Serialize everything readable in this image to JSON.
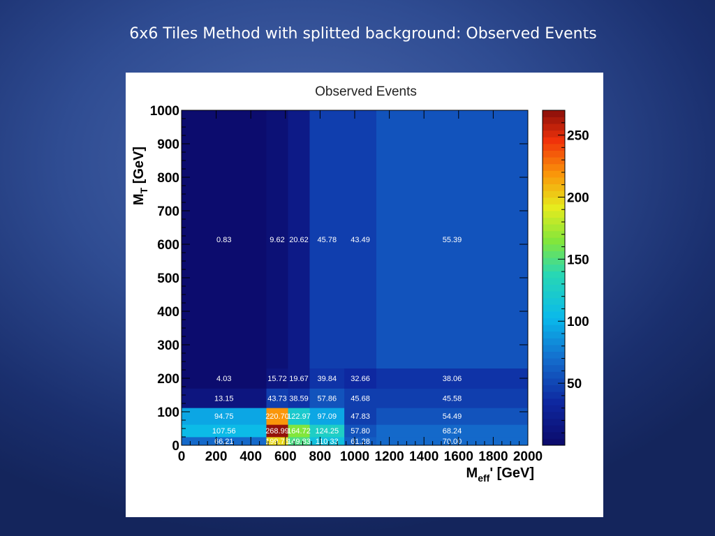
{
  "slide": {
    "title": "6x6 Tiles Method with splitted background: Observed Events"
  },
  "chart_data": {
    "type": "heatmap",
    "title": "Observed Events",
    "xlabel": "M_eff' [GeV]",
    "ylabel": "M_T [GeV]",
    "xlim": [
      0,
      2000
    ],
    "ylim": [
      0,
      1000
    ],
    "x_ticks": [
      0,
      200,
      400,
      600,
      800,
      1000,
      1200,
      1400,
      1600,
      1800,
      2000
    ],
    "y_ticks": [
      0,
      100,
      200,
      300,
      400,
      500,
      600,
      700,
      800,
      900,
      1000
    ],
    "x_bin_edges": [
      0,
      490,
      615,
      740,
      940,
      1125,
      2000
    ],
    "y_bin_edges": [
      0,
      25,
      62,
      112,
      170,
      230,
      1000
    ],
    "z_range": [
      0,
      270
    ],
    "z_ticks": [
      50,
      100,
      150,
      200,
      250
    ],
    "values": [
      [
        66.21,
        199.76,
        149.83,
        110.33,
        61.28,
        70.0
      ],
      [
        107.56,
        268.99,
        164.72,
        124.25,
        57.8,
        68.24
      ],
      [
        94.75,
        220.7,
        122.97,
        97.09,
        47.83,
        54.49
      ],
      [
        13.15,
        43.73,
        38.59,
        57.86,
        45.68,
        45.58
      ],
      [
        4.03,
        15.72,
        19.67,
        39.84,
        32.66,
        38.06
      ],
      [
        0.83,
        9.62,
        20.62,
        45.78,
        43.49,
        55.39
      ]
    ],
    "labels": [
      [
        "66.21",
        "199.76",
        "149.83",
        "110.33",
        "61.28",
        "70.00"
      ],
      [
        "107.56",
        "268.99",
        "164.72",
        "124.25",
        "57.80",
        "68.24"
      ],
      [
        "94.75",
        "220.70",
        "122.97",
        "97.09",
        "47.83",
        "54.49"
      ],
      [
        "13.15",
        "43.73",
        "38.59",
        "57.86",
        "45.68",
        "45.58"
      ],
      [
        "4.03",
        "15.72",
        "19.67",
        "39.84",
        "32.66",
        "38.06"
      ],
      [
        "0.83",
        "9.62",
        "20.62",
        "45.78",
        "43.49",
        "55.39"
      ]
    ],
    "legend": "colorbar-right",
    "grid": false
  }
}
